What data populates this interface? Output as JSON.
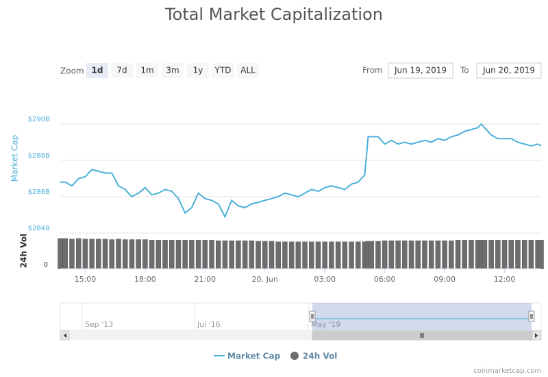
{
  "chart_data": {
    "type": "line",
    "title": "Total Market Capitalization",
    "zoom_label": "Zoom",
    "zoom_buttons": [
      "1d",
      "7d",
      "1m",
      "3m",
      "1y",
      "YTD",
      "ALL"
    ],
    "range": {
      "from_label": "From",
      "from": "Jun 19, 2019",
      "to_label": "To",
      "to": "Jun 20, 2019"
    },
    "y_label": "Market Cap",
    "y2_label": "24h Vol",
    "x": [
      "2019-06-19T13:45",
      "2019-06-19T14:00",
      "2019-06-19T14:20",
      "2019-06-19T14:40",
      "2019-06-19T15:00",
      "2019-06-19T15:20",
      "2019-06-19T15:40",
      "2019-06-19T16:00",
      "2019-06-19T16:20",
      "2019-06-19T16:40",
      "2019-06-19T17:00",
      "2019-06-19T17:20",
      "2019-06-19T17:40",
      "2019-06-19T18:00",
      "2019-06-19T18:20",
      "2019-06-19T18:40",
      "2019-06-19T19:00",
      "2019-06-19T19:20",
      "2019-06-19T19:40",
      "2019-06-19T20:00",
      "2019-06-19T20:20",
      "2019-06-19T20:40",
      "2019-06-19T21:00",
      "2019-06-19T21:20",
      "2019-06-19T21:40",
      "2019-06-19T22:00",
      "2019-06-19T22:20",
      "2019-06-19T22:40",
      "2019-06-19T23:00",
      "2019-06-19T23:20",
      "2019-06-19T23:40",
      "2019-06-20T00:00",
      "2019-06-20T00:20",
      "2019-06-20T00:40",
      "2019-06-20T01:00",
      "2019-06-20T01:20",
      "2019-06-20T01:40",
      "2019-06-20T02:00",
      "2019-06-20T02:20",
      "2019-06-20T02:40",
      "2019-06-20T03:00",
      "2019-06-20T03:20",
      "2019-06-20T03:40",
      "2019-06-20T04:00",
      "2019-06-20T04:20",
      "2019-06-20T04:40",
      "2019-06-20T05:00",
      "2019-06-20T05:10",
      "2019-06-20T05:20",
      "2019-06-20T05:40",
      "2019-06-20T06:00",
      "2019-06-20T06:20",
      "2019-06-20T06:40",
      "2019-06-20T07:00",
      "2019-06-20T07:20",
      "2019-06-20T07:40",
      "2019-06-20T08:00",
      "2019-06-20T08:20",
      "2019-06-20T08:40",
      "2019-06-20T09:00",
      "2019-06-20T09:20",
      "2019-06-20T09:40",
      "2019-06-20T10:00",
      "2019-06-20T10:20",
      "2019-06-20T10:40",
      "2019-06-20T10:50",
      "2019-06-20T11:00",
      "2019-06-20T11:20",
      "2019-06-20T11:40",
      "2019-06-20T12:00",
      "2019-06-20T12:20",
      "2019-06-20T12:40",
      "2019-06-20T13:00",
      "2019-06-20T13:20",
      "2019-06-20T13:40",
      "2019-06-20T13:50"
    ],
    "series": [
      {
        "name": "Market Cap",
        "color": "#4ab0d9",
        "values": [
          286.8,
          286.8,
          286.6,
          287.0,
          287.1,
          287.5,
          287.4,
          287.3,
          287.3,
          286.6,
          286.4,
          286.0,
          286.2,
          286.5,
          286.1,
          286.2,
          286.4,
          286.3,
          285.9,
          285.1,
          285.4,
          286.2,
          285.9,
          285.8,
          285.6,
          284.9,
          285.8,
          285.5,
          285.4,
          285.6,
          285.7,
          285.8,
          285.9,
          286.0,
          286.2,
          286.1,
          286.0,
          286.2,
          286.4,
          286.3,
          286.5,
          286.6,
          286.5,
          286.4,
          286.7,
          286.8,
          287.2,
          289.3,
          289.3,
          289.3,
          288.9,
          289.1,
          288.9,
          289.0,
          288.9,
          289.0,
          289.1,
          289.0,
          289.2,
          289.1,
          289.3,
          289.4,
          289.6,
          289.7,
          289.8,
          290.0,
          289.8,
          289.4,
          289.2,
          289.2,
          289.2,
          289.0,
          288.9,
          288.8,
          288.9,
          288.8
        ]
      },
      {
        "name": "24h Vol",
        "color": "#6d6d6d",
        "axis": "y2",
        "values": [
          54,
          54,
          53,
          54,
          53,
          53,
          53,
          53,
          52,
          53,
          52,
          52,
          52,
          52,
          51,
          51,
          51,
          51,
          51,
          51,
          51,
          51,
          51,
          51,
          50,
          50,
          50,
          50,
          50,
          50,
          49,
          49,
          49,
          48,
          48,
          48,
          48,
          48,
          48,
          48,
          48,
          48,
          48,
          48,
          48,
          48,
          48,
          49,
          49,
          49,
          50,
          50,
          50,
          50,
          50,
          50,
          50,
          50,
          50,
          50,
          50,
          51,
          51,
          51,
          51,
          51,
          51,
          51,
          51,
          51,
          51,
          51,
          51,
          51,
          51,
          51
        ]
      }
    ],
    "xlim": [
      "2019-06-19T13:45",
      "2019-06-20T13:50"
    ],
    "xticks": [
      {
        "value": "2019-06-19T15:00",
        "label": "15:00"
      },
      {
        "value": "2019-06-19T18:00",
        "label": "18:00"
      },
      {
        "value": "2019-06-19T21:00",
        "label": "21:00"
      },
      {
        "value": "2019-06-20T00:00",
        "label": "20. Jun"
      },
      {
        "value": "2019-06-20T03:00",
        "label": "03:00"
      },
      {
        "value": "2019-06-20T06:00",
        "label": "06:00"
      },
      {
        "value": "2019-06-20T09:00",
        "label": "09:00"
      },
      {
        "value": "2019-06-20T12:00",
        "label": "12:00"
      }
    ],
    "ylim": [
      284,
      292
    ],
    "yticks": [
      {
        "value": 284,
        "label": "$284B"
      },
      {
        "value": 286,
        "label": "$286B"
      },
      {
        "value": 288,
        "label": "$288B"
      },
      {
        "value": 290,
        "label": "$290B"
      }
    ],
    "y2lim": [
      0,
      60
    ],
    "y2ticks": [
      0
    ],
    "grid": true,
    "navigator_labels": [
      "Sep '13",
      "Jul '16",
      "May '19"
    ],
    "credit": "coinmarketcap.com"
  }
}
